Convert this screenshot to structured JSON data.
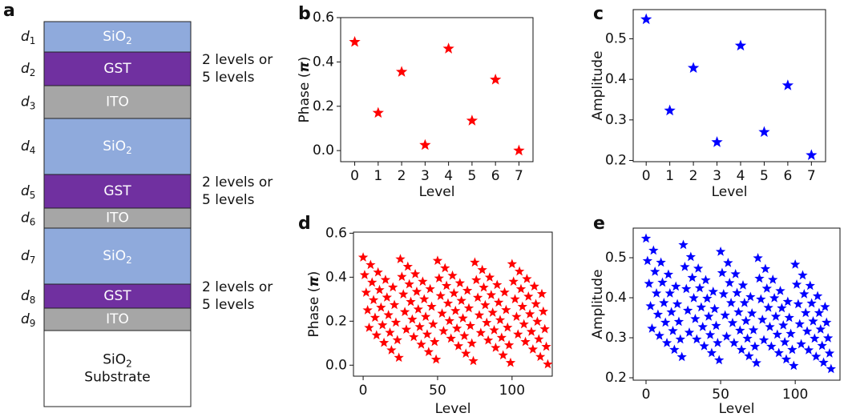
{
  "diagram": {
    "panel": "a",
    "layers": [
      {
        "color": "#8faadc",
        "d": {
          "text": "d",
          "sub": "1"
        },
        "lines": [
          {
            "text": "SiO",
            "sub": "2"
          }
        ]
      },
      {
        "color": "#7030a0",
        "d": {
          "text": "d",
          "sub": "2"
        },
        "lines": [
          {
            "text": "GST"
          }
        ],
        "note": [
          "2 levels or",
          "5 levels"
        ]
      },
      {
        "color": "#a6a6a6",
        "d": {
          "text": "d",
          "sub": "3"
        },
        "lines": [
          {
            "text": "ITO"
          }
        ]
      },
      {
        "color": "#8faadc",
        "d": {
          "text": "d",
          "sub": "4"
        },
        "lines": [
          {
            "text": "SiO",
            "sub": "2"
          }
        ]
      },
      {
        "color": "#7030a0",
        "d": {
          "text": "d",
          "sub": "5"
        },
        "lines": [
          {
            "text": "GST"
          }
        ],
        "note": [
          "2 levels or",
          "5 levels"
        ]
      },
      {
        "color": "#a6a6a6",
        "d": {
          "text": "d",
          "sub": "6"
        },
        "lines": [
          {
            "text": "ITO"
          }
        ]
      },
      {
        "color": "#8faadc",
        "d": {
          "text": "d",
          "sub": "7"
        },
        "lines": [
          {
            "text": "SiO",
            "sub": "2"
          }
        ]
      },
      {
        "color": "#7030a0",
        "d": {
          "text": "d",
          "sub": "8"
        },
        "lines": [
          {
            "text": "GST"
          }
        ],
        "note": [
          "2 levels or",
          "5 levels"
        ]
      },
      {
        "color": "#a6a6a6",
        "d": {
          "text": "d",
          "sub": "9"
        },
        "lines": [
          {
            "text": "ITO"
          }
        ]
      },
      {
        "color": "#ffffff",
        "lines": [
          {
            "text": "SiO",
            "sub": "2"
          },
          {
            "text": "Substrate"
          }
        ]
      }
    ]
  },
  "chart_data": [
    {
      "type": "scatter",
      "panel": "b",
      "marker": "star",
      "ylabel": {
        "text": "Phase (",
        "symbol": "π",
        "end": ")"
      },
      "xlabel": "Level",
      "x": [
        0,
        1,
        2,
        3,
        4,
        5,
        6,
        7
      ],
      "series": [
        {
          "color": "#ff0000",
          "values": [
            0.49,
            0.17,
            0.355,
            0.025,
            0.46,
            0.135,
            0.32,
            0.0
          ]
        }
      ],
      "xlim": [
        -0.6,
        7.6
      ],
      "xticks": [
        0,
        1,
        2,
        3,
        4,
        5,
        6,
        7
      ],
      "ylim": [
        -0.05,
        0.6
      ],
      "yticks": [
        {
          "value": 0,
          "label": "0.0"
        },
        0.2,
        0.4,
        0.6
      ]
    },
    {
      "type": "scatter",
      "panel": "c",
      "marker": "star",
      "ylabel": {
        "text": "Amplitude"
      },
      "xlabel": "Level",
      "x": [
        0,
        1,
        2,
        3,
        4,
        5,
        6,
        7
      ],
      "series": [
        {
          "color": "#0000ff",
          "values": [
            0.548,
            0.323,
            0.428,
            0.245,
            0.483,
            0.27,
            0.385,
            0.213
          ]
        }
      ],
      "xlim": [
        -0.55,
        7.6
      ],
      "xticks": [
        0,
        1,
        2,
        3,
        4,
        5,
        6,
        7
      ],
      "ylim": [
        0.197,
        0.572
      ],
      "yticks": [
        0.2,
        0.3,
        0.4,
        0.5
      ]
    },
    {
      "type": "scatter",
      "panel": "d",
      "marker": "star",
      "ylabel": {
        "text": "Phase (",
        "symbol": "π",
        "end": ")"
      },
      "xlabel": "Level",
      "x": [
        0,
        1,
        2,
        3,
        4,
        5,
        6,
        7,
        8,
        9,
        10,
        11,
        12,
        13,
        14,
        15,
        16,
        17,
        18,
        19,
        20,
        21,
        22,
        23,
        24,
        25,
        26,
        27,
        28,
        29,
        30,
        31,
        32,
        33,
        34,
        35,
        36,
        37,
        38,
        39,
        40,
        41,
        42,
        43,
        44,
        45,
        46,
        47,
        48,
        49,
        50,
        51,
        52,
        53,
        54,
        55,
        56,
        57,
        58,
        59,
        60,
        61,
        62,
        63,
        64,
        65,
        66,
        67,
        68,
        69,
        70,
        71,
        72,
        73,
        74,
        75,
        76,
        77,
        78,
        79,
        80,
        81,
        82,
        83,
        84,
        85,
        86,
        87,
        88,
        89,
        90,
        91,
        92,
        93,
        94,
        95,
        96,
        97,
        98,
        99,
        100,
        101,
        102,
        103,
        104,
        105,
        106,
        107,
        108,
        109,
        110,
        111,
        112,
        113,
        114,
        115,
        116,
        117,
        118,
        119,
        120,
        121,
        122,
        123,
        124
      ],
      "series": [
        {
          "color": "#ff0000",
          "values": [
            0.49,
            0.41,
            0.33,
            0.25,
            0.17,
            0.456,
            0.376,
            0.296,
            0.216,
            0.136,
            0.422,
            0.342,
            0.262,
            0.182,
            0.102,
            0.388,
            0.308,
            0.228,
            0.148,
            0.068,
            0.354,
            0.274,
            0.194,
            0.114,
            0.034,
            0.482,
            0.402,
            0.322,
            0.242,
            0.162,
            0.448,
            0.368,
            0.288,
            0.208,
            0.128,
            0.414,
            0.334,
            0.254,
            0.174,
            0.094,
            0.38,
            0.3,
            0.22,
            0.14,
            0.06,
            0.346,
            0.266,
            0.186,
            0.106,
            0.026,
            0.475,
            0.395,
            0.315,
            0.235,
            0.155,
            0.441,
            0.361,
            0.281,
            0.201,
            0.121,
            0.407,
            0.327,
            0.247,
            0.167,
            0.087,
            0.373,
            0.293,
            0.213,
            0.133,
            0.053,
            0.339,
            0.259,
            0.179,
            0.099,
            0.019,
            0.467,
            0.387,
            0.307,
            0.227,
            0.147,
            0.433,
            0.353,
            0.273,
            0.193,
            0.113,
            0.399,
            0.319,
            0.239,
            0.159,
            0.079,
            0.365,
            0.285,
            0.205,
            0.125,
            0.045,
            0.331,
            0.251,
            0.171,
            0.091,
            0.011,
            0.46,
            0.38,
            0.3,
            0.22,
            0.14,
            0.426,
            0.346,
            0.266,
            0.186,
            0.106,
            0.392,
            0.312,
            0.232,
            0.152,
            0.072,
            0.358,
            0.278,
            0.198,
            0.118,
            0.038,
            0.324,
            0.244,
            0.164,
            0.084,
            0.004
          ]
        }
      ],
      "xlim": [
        -6.5,
        127
      ],
      "xticks": [
        0,
        50,
        100
      ],
      "ylim": [
        -0.05,
        0.605
      ],
      "yticks": [
        {
          "value": 0,
          "label": "0.0"
        },
        0.2,
        0.4,
        0.6
      ]
    },
    {
      "type": "scatter",
      "panel": "e",
      "marker": "star",
      "ylabel": {
        "text": "Amplitude"
      },
      "xlabel": "Level",
      "x": [
        0,
        1,
        2,
        3,
        4,
        5,
        6,
        7,
        8,
        9,
        10,
        11,
        12,
        13,
        14,
        15,
        16,
        17,
        18,
        19,
        20,
        21,
        22,
        23,
        24,
        25,
        26,
        27,
        28,
        29,
        30,
        31,
        32,
        33,
        34,
        35,
        36,
        37,
        38,
        39,
        40,
        41,
        42,
        43,
        44,
        45,
        46,
        47,
        48,
        49,
        50,
        51,
        52,
        53,
        54,
        55,
        56,
        57,
        58,
        59,
        60,
        61,
        62,
        63,
        64,
        65,
        66,
        67,
        68,
        69,
        70,
        71,
        72,
        73,
        74,
        75,
        76,
        77,
        78,
        79,
        80,
        81,
        82,
        83,
        84,
        85,
        86,
        87,
        88,
        89,
        90,
        91,
        92,
        93,
        94,
        95,
        96,
        97,
        98,
        99,
        100,
        101,
        102,
        103,
        104,
        105,
        106,
        107,
        108,
        109,
        110,
        111,
        112,
        113,
        114,
        115,
        116,
        117,
        118,
        119,
        120,
        121,
        122,
        123,
        124
      ],
      "series": [
        {
          "color": "#0000ff",
          "values": [
            0.548,
            0.492,
            0.435,
            0.379,
            0.323,
            0.518,
            0.465,
            0.411,
            0.358,
            0.305,
            0.488,
            0.438,
            0.387,
            0.338,
            0.287,
            0.458,
            0.411,
            0.364,
            0.317,
            0.27,
            0.428,
            0.384,
            0.34,
            0.296,
            0.252,
            0.532,
            0.477,
            0.422,
            0.368,
            0.313,
            0.502,
            0.45,
            0.399,
            0.347,
            0.296,
            0.473,
            0.424,
            0.376,
            0.327,
            0.279,
            0.444,
            0.398,
            0.353,
            0.307,
            0.262,
            0.415,
            0.372,
            0.33,
            0.287,
            0.244,
            0.515,
            0.462,
            0.409,
            0.356,
            0.303,
            0.487,
            0.437,
            0.387,
            0.337,
            0.287,
            0.459,
            0.412,
            0.364,
            0.318,
            0.27,
            0.431,
            0.387,
            0.342,
            0.298,
            0.254,
            0.402,
            0.361,
            0.319,
            0.278,
            0.237,
            0.499,
            0.448,
            0.396,
            0.345,
            0.294,
            0.472,
            0.423,
            0.375,
            0.327,
            0.278,
            0.445,
            0.399,
            0.353,
            0.308,
            0.262,
            0.417,
            0.374,
            0.331,
            0.289,
            0.246,
            0.39,
            0.35,
            0.31,
            0.27,
            0.23,
            0.483,
            0.433,
            0.384,
            0.334,
            0.284,
            0.456,
            0.409,
            0.362,
            0.316,
            0.269,
            0.43,
            0.386,
            0.341,
            0.298,
            0.253,
            0.404,
            0.362,
            0.321,
            0.28,
            0.238,
            0.377,
            0.338,
            0.299,
            0.261,
            0.222
          ]
        }
      ],
      "xlim": [
        -8.6,
        130
      ],
      "xticks": [
        0,
        50,
        100
      ],
      "ylim": [
        0.194,
        0.574
      ],
      "yticks": [
        0.2,
        0.3,
        0.4,
        0.5
      ]
    }
  ]
}
